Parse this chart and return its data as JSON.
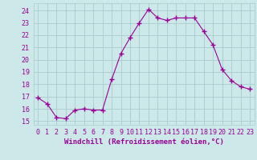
{
  "x": [
    0,
    1,
    2,
    3,
    4,
    5,
    6,
    7,
    8,
    9,
    10,
    11,
    12,
    13,
    14,
    15,
    16,
    17,
    18,
    19,
    20,
    21,
    22,
    23
  ],
  "y": [
    16.9,
    16.4,
    15.3,
    15.2,
    15.9,
    16.0,
    15.9,
    15.9,
    18.4,
    20.5,
    21.8,
    23.0,
    24.1,
    23.4,
    23.2,
    23.4,
    23.4,
    23.4,
    22.3,
    21.2,
    19.2,
    18.3,
    17.8,
    17.6
  ],
  "line_color": "#990099",
  "marker": "+",
  "marker_size": 4,
  "bg_color": "#cce8e8",
  "grid_color": "#aacccc",
  "xlabel": "Windchill (Refroidissement éolien,°C)",
  "ylabel_ticks": [
    15,
    16,
    17,
    18,
    19,
    20,
    21,
    22,
    23,
    24
  ],
  "xlim": [
    -0.5,
    23.5
  ],
  "ylim": [
    14.7,
    24.6
  ],
  "tick_color": "#990099",
  "label_color": "#990099",
  "tick_fontsize": 6,
  "xlabel_fontsize": 6.5
}
